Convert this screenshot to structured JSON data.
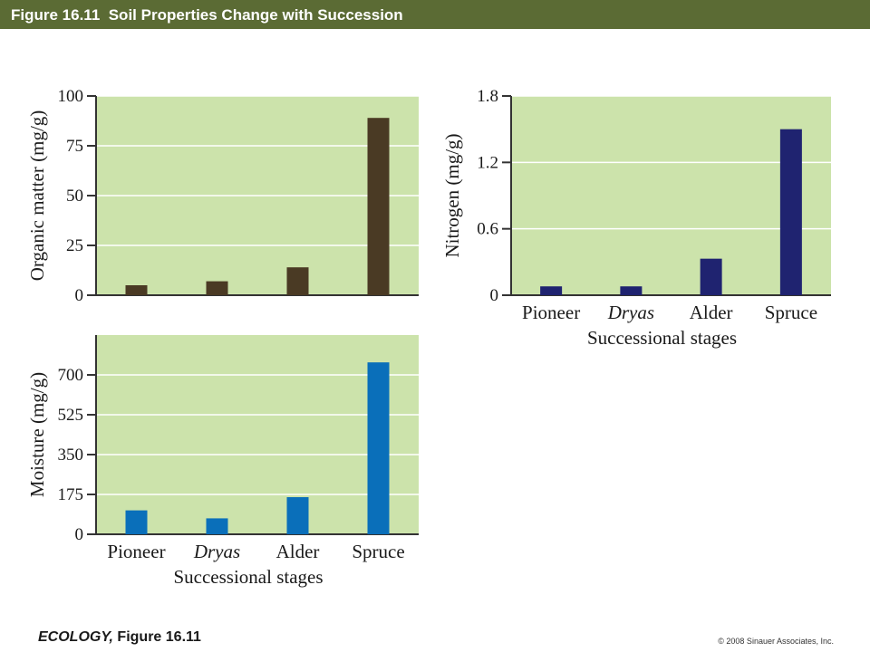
{
  "header": {
    "title": "Figure 16.11  Soil Properties Change with Succession"
  },
  "footer": {
    "book_title": "ECOLOGY,",
    "figure_ref": " Figure 16.11",
    "copyright": "© 2008 Sinauer Associates, Inc."
  },
  "colors": {
    "header_bg": "#5b6b34",
    "plot_bg": "#cce3ab",
    "grid": "#ffffff",
    "axis": "#333333"
  },
  "chart_data": [
    {
      "type": "bar",
      "title": "",
      "categories": [
        "Pioneer",
        "Dryas",
        "Alder",
        "Spruce"
      ],
      "values": [
        5,
        7,
        14,
        89
      ],
      "ylabel": "Organic matter (mg/g)",
      "xlabel": "",
      "ylim": [
        0,
        100
      ],
      "yticks": [
        "0",
        "25",
        "50",
        "75",
        "100"
      ],
      "show_categories": false,
      "bar_color": "#4a3a24",
      "grid": true
    },
    {
      "type": "bar",
      "title": "",
      "categories": [
        "Pioneer",
        "Dryas",
        "Alder",
        "Spruce"
      ],
      "values": [
        0.08,
        0.08,
        0.33,
        1.5
      ],
      "ylabel": "Nitrogen (mg/g)",
      "xlabel": "Successional stages",
      "ylim": [
        0,
        1.8
      ],
      "yticks": [
        "0",
        "0.6",
        "1.2",
        "1.8"
      ],
      "show_categories": true,
      "bar_color": "#1f2370",
      "grid": true
    },
    {
      "type": "bar",
      "title": "",
      "categories": [
        "Pioneer",
        "Dryas",
        "Alder",
        "Spruce"
      ],
      "values": [
        105,
        70,
        163,
        755
      ],
      "ylabel": "Moisture (mg/g)",
      "xlabel": "Successional stages",
      "ylim": [
        0,
        875
      ],
      "yticks": [
        "0",
        "175",
        "350",
        "525",
        "700"
      ],
      "show_categories": true,
      "bar_color": "#0a6fba",
      "grid": true
    }
  ]
}
